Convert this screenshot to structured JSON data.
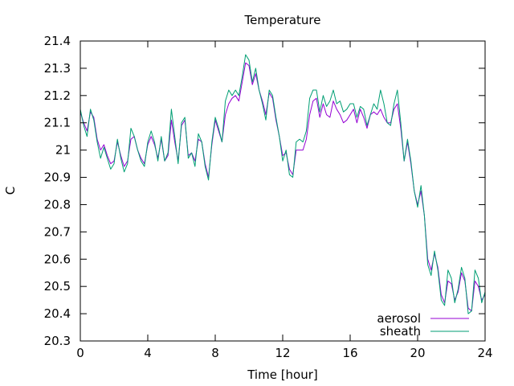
{
  "chart_data": {
    "type": "line",
    "title": "Temperature",
    "xlabel": "Time [hour]",
    "ylabel": "C",
    "xlim": [
      0,
      24
    ],
    "ylim": [
      20.3,
      21.4
    ],
    "xticks": [
      0,
      4,
      8,
      12,
      16,
      20,
      24
    ],
    "yticks": [
      20.3,
      20.4,
      20.5,
      20.6,
      20.7,
      20.8,
      20.9,
      21,
      21.1,
      21.2,
      21.3,
      21.4
    ],
    "ytick_labels": [
      "20.3",
      "20.4",
      "20.5",
      "20.6",
      "20.7",
      "20.8",
      "20.9",
      "21",
      "21.1",
      "21.2",
      "21.3",
      "21.4"
    ],
    "grid": false,
    "legend_position": "bottom-right",
    "series": [
      {
        "name": "aerosol",
        "color": "#9400d3",
        "x": [
          0,
          0.2,
          0.4,
          0.6,
          0.8,
          1.0,
          1.2,
          1.4,
          1.6,
          1.8,
          2.0,
          2.2,
          2.4,
          2.6,
          2.8,
          3.0,
          3.2,
          3.4,
          3.6,
          3.8,
          4.0,
          4.2,
          4.4,
          4.6,
          4.8,
          5.0,
          5.2,
          5.4,
          5.6,
          5.8,
          6.0,
          6.2,
          6.4,
          6.6,
          6.8,
          7.0,
          7.2,
          7.4,
          7.6,
          7.8,
          8.0,
          8.2,
          8.4,
          8.6,
          8.8,
          9.0,
          9.2,
          9.4,
          9.6,
          9.8,
          10.0,
          10.2,
          10.4,
          10.6,
          10.8,
          11.0,
          11.2,
          11.4,
          11.6,
          11.8,
          12.0,
          12.2,
          12.4,
          12.6,
          12.8,
          13.0,
          13.2,
          13.4,
          13.6,
          13.8,
          14.0,
          14.2,
          14.4,
          14.6,
          14.8,
          15.0,
          15.2,
          15.4,
          15.6,
          15.8,
          16.0,
          16.2,
          16.4,
          16.6,
          16.8,
          17.0,
          17.2,
          17.4,
          17.6,
          17.8,
          18.0,
          18.2,
          18.4,
          18.6,
          18.8,
          19.0,
          19.2,
          19.4,
          19.6,
          19.8,
          20.0,
          20.2,
          20.4,
          20.6,
          20.8,
          21.0,
          21.2,
          21.4,
          21.6,
          21.8,
          22.0,
          22.2,
          22.4,
          22.6,
          22.8,
          23.0,
          23.2,
          23.4,
          23.6,
          23.8,
          24.0
        ],
        "values": [
          21.14,
          21.1,
          21.07,
          21.14,
          21.12,
          21.04,
          21.0,
          21.02,
          20.98,
          20.95,
          20.96,
          21.03,
          20.98,
          20.94,
          20.96,
          21.04,
          21.05,
          21.0,
          20.97,
          20.95,
          21.02,
          21.05,
          21.02,
          20.97,
          21.04,
          20.96,
          20.98,
          21.11,
          21.03,
          20.96,
          21.09,
          21.11,
          20.98,
          20.99,
          20.96,
          21.04,
          21.03,
          20.95,
          20.9,
          21.02,
          21.11,
          21.07,
          21.03,
          21.13,
          21.17,
          21.19,
          21.2,
          21.18,
          21.25,
          21.32,
          21.31,
          21.24,
          21.28,
          21.22,
          21.18,
          21.13,
          21.21,
          21.19,
          21.11,
          21.05,
          20.98,
          20.99,
          20.93,
          20.91,
          21.0,
          21.0,
          21.0,
          21.04,
          21.13,
          21.18,
          21.19,
          21.12,
          21.17,
          21.13,
          21.12,
          21.18,
          21.15,
          21.13,
          21.1,
          21.11,
          21.13,
          21.15,
          21.1,
          21.15,
          21.12,
          21.08,
          21.13,
          21.14,
          21.13,
          21.15,
          21.12,
          21.1,
          21.1,
          21.15,
          21.17,
          21.08,
          20.96,
          21.03,
          20.95,
          20.85,
          20.8,
          20.85,
          20.76,
          20.6,
          20.56,
          20.62,
          20.57,
          20.47,
          20.44,
          20.52,
          20.51,
          20.45,
          20.48,
          20.55,
          20.52,
          20.42,
          20.41,
          20.52,
          20.5,
          20.45,
          20.47
        ]
      },
      {
        "name": "sheath",
        "color": "#009e73",
        "x": [
          0,
          0.2,
          0.4,
          0.6,
          0.8,
          1.0,
          1.2,
          1.4,
          1.6,
          1.8,
          2.0,
          2.2,
          2.4,
          2.6,
          2.8,
          3.0,
          3.2,
          3.4,
          3.6,
          3.8,
          4.0,
          4.2,
          4.4,
          4.6,
          4.8,
          5.0,
          5.2,
          5.4,
          5.6,
          5.8,
          6.0,
          6.2,
          6.4,
          6.6,
          6.8,
          7.0,
          7.2,
          7.4,
          7.6,
          7.8,
          8.0,
          8.2,
          8.4,
          8.6,
          8.8,
          9.0,
          9.2,
          9.4,
          9.6,
          9.8,
          10.0,
          10.2,
          10.4,
          10.6,
          10.8,
          11.0,
          11.2,
          11.4,
          11.6,
          11.8,
          12.0,
          12.2,
          12.4,
          12.6,
          12.8,
          13.0,
          13.2,
          13.4,
          13.6,
          13.8,
          14.0,
          14.2,
          14.4,
          14.6,
          14.8,
          15.0,
          15.2,
          15.4,
          15.6,
          15.8,
          16.0,
          16.2,
          16.4,
          16.6,
          16.8,
          17.0,
          17.2,
          17.4,
          17.6,
          17.8,
          18.0,
          18.2,
          18.4,
          18.6,
          18.8,
          19.0,
          19.2,
          19.4,
          19.6,
          19.8,
          20.0,
          20.2,
          20.4,
          20.6,
          20.8,
          21.0,
          21.2,
          21.4,
          21.6,
          21.8,
          22.0,
          22.2,
          22.4,
          22.6,
          22.8,
          23.0,
          23.2,
          23.4,
          23.6,
          23.8,
          24.0
        ],
        "values": [
          21.15,
          21.09,
          21.05,
          21.15,
          21.11,
          21.03,
          20.97,
          21.01,
          20.97,
          20.93,
          20.95,
          21.04,
          20.97,
          20.92,
          20.95,
          21.08,
          21.05,
          21.0,
          20.96,
          20.94,
          21.03,
          21.07,
          21.03,
          20.96,
          21.05,
          20.96,
          20.99,
          21.15,
          21.05,
          20.95,
          21.1,
          21.12,
          20.97,
          20.99,
          20.94,
          21.06,
          21.03,
          20.94,
          20.89,
          21.03,
          21.12,
          21.08,
          21.03,
          21.18,
          21.22,
          21.2,
          21.22,
          21.2,
          21.27,
          21.35,
          21.33,
          21.25,
          21.3,
          21.22,
          21.17,
          21.11,
          21.22,
          21.2,
          21.12,
          21.05,
          20.96,
          21.0,
          20.91,
          20.9,
          21.03,
          21.04,
          21.03,
          21.07,
          21.19,
          21.22,
          21.22,
          21.14,
          21.2,
          21.16,
          21.18,
          21.22,
          21.17,
          21.18,
          21.14,
          21.15,
          21.17,
          21.17,
          21.12,
          21.16,
          21.15,
          21.09,
          21.13,
          21.17,
          21.15,
          21.22,
          21.17,
          21.1,
          21.09,
          21.17,
          21.22,
          21.1,
          20.96,
          21.04,
          20.96,
          20.85,
          20.79,
          20.87,
          20.76,
          20.58,
          20.54,
          20.63,
          20.56,
          20.45,
          20.43,
          20.56,
          20.53,
          20.44,
          20.49,
          20.57,
          20.53,
          20.4,
          20.41,
          20.56,
          20.53,
          20.44,
          20.48
        ]
      }
    ]
  }
}
